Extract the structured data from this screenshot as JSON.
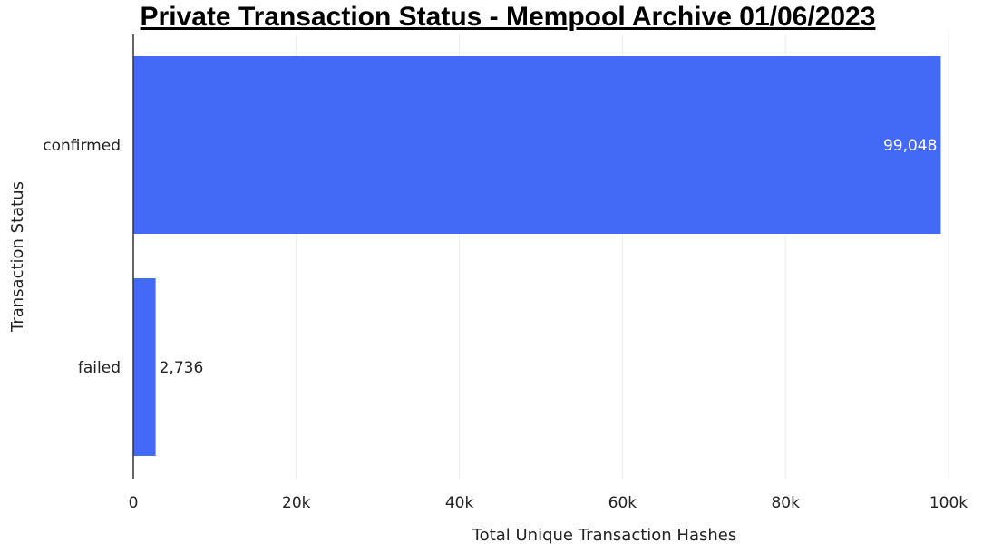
{
  "chart_data": {
    "type": "bar",
    "orientation": "horizontal",
    "title": "Private Transaction Status - Mempool Archive 01/06/2023",
    "xlabel": "Total Unique Transaction Hashes",
    "ylabel": "Transaction Status",
    "categories": [
      "confirmed",
      "failed"
    ],
    "values": [
      99048,
      2736
    ],
    "data_labels": [
      "99,048",
      "2,736"
    ],
    "xlim": [
      0,
      100000
    ],
    "xticks": [
      0,
      20000,
      40000,
      60000,
      80000,
      100000
    ],
    "xtick_labels": [
      "0",
      "20k",
      "40k",
      "60k",
      "80k",
      "100k"
    ],
    "grid": "vertical",
    "bar_color": "#436af6"
  }
}
